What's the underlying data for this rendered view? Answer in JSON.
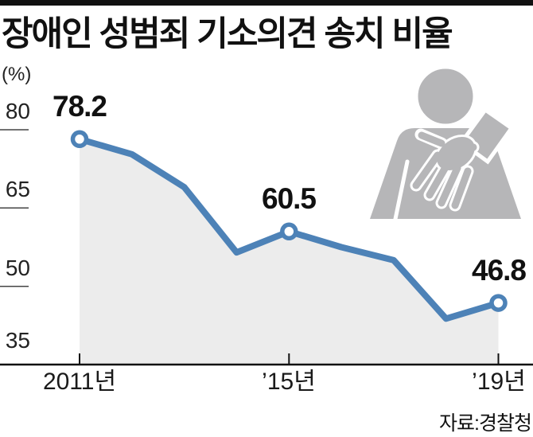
{
  "header": {
    "title": "장애인 성범죄 기소의견 송치 비율"
  },
  "source": {
    "label": "자료:경찰청"
  },
  "icon": {
    "name": "person-groping-hand-pictogram",
    "color": "#b6b6b8"
  },
  "chart_data": {
    "type": "line",
    "title": "장애인 성범죄 기소의견 송치 비율",
    "unit_label": "(%)",
    "x": [
      2011,
      2012,
      2013,
      2014,
      2015,
      2016,
      2017,
      2018,
      2019
    ],
    "values": [
      78.2,
      75.3,
      69.0,
      56.5,
      60.5,
      57.5,
      55.0,
      43.8,
      46.8
    ],
    "labeled_points": [
      {
        "year": 2011,
        "value": 78.2,
        "label": "78.2"
      },
      {
        "year": 2015,
        "value": 60.5,
        "label": "60.5"
      },
      {
        "year": 2019,
        "value": 46.8,
        "label": "46.8"
      }
    ],
    "estimated_years": [
      2012,
      2013,
      2014,
      2016,
      2017,
      2018
    ],
    "y_ticks": [
      {
        "value": 80,
        "label": "80",
        "has_tick_line": true
      },
      {
        "value": 65,
        "label": "65",
        "has_tick_line": true
      },
      {
        "value": 50,
        "label": "50",
        "has_tick_line": true
      },
      {
        "value": 35,
        "label": "35",
        "has_tick_line": false
      }
    ],
    "x_tick_labels": [
      {
        "year": 2011,
        "label": "2011년"
      },
      {
        "year": 2015,
        "label": "’15년"
      },
      {
        "year": 2019,
        "label": "’19년"
      }
    ],
    "ylim": [
      35,
      80
    ],
    "grid": "off",
    "legend": "none",
    "colors": {
      "line": "#4d82b7",
      "area_fill": "#ececec",
      "marker_fill": "#ffffff",
      "axis": "#111111",
      "tick": "#444444",
      "pictogram": "#b6b6b8"
    }
  }
}
